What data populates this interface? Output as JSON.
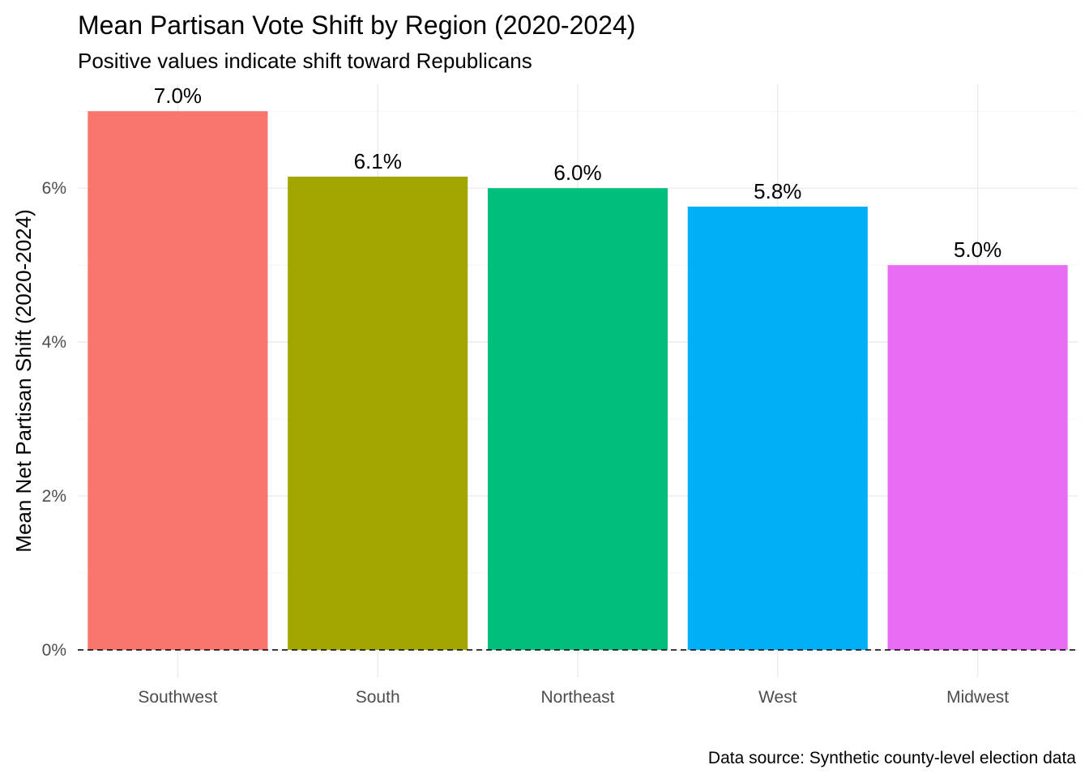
{
  "chart_data": {
    "type": "bar",
    "title": "Mean Partisan Vote Shift by Region (2020-2024)",
    "subtitle": "Positive values indicate shift toward Republicans",
    "xlabel": "",
    "ylabel": "Mean Net Partisan Shift (2020-2024)",
    "caption": "Data source: Synthetic county-level election data",
    "categories": [
      "Southwest",
      "South",
      "Northeast",
      "West",
      "Midwest"
    ],
    "values": [
      7.0,
      6.15,
      6.0,
      5.76,
      5.0
    ],
    "value_labels": [
      "7.0%",
      "6.1%",
      "6.0%",
      "5.8%",
      "5.0%"
    ],
    "colors": [
      "#F8766D",
      "#A3A500",
      "#00BF7D",
      "#00B0F6",
      "#E76BF3"
    ],
    "ylim": [
      0,
      7.35
    ],
    "yticks": [
      0,
      2,
      4,
      6
    ],
    "ytick_labels": [
      "0%",
      "2%",
      "4%",
      "6%"
    ],
    "reference_line": {
      "y": 0,
      "style": "dashed"
    },
    "grid": true,
    "legend": "none"
  }
}
